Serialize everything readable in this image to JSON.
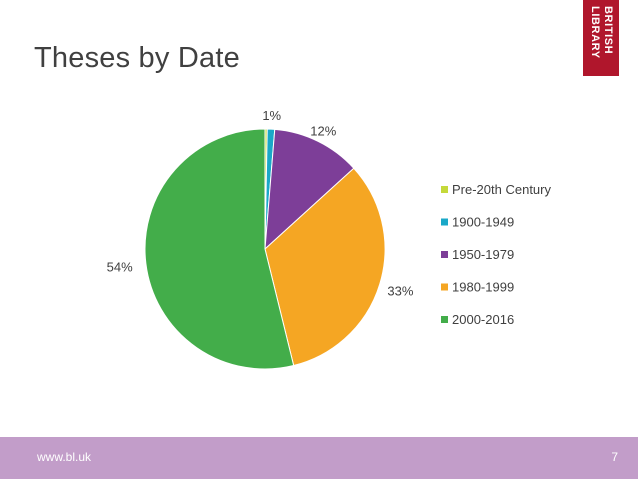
{
  "slide": {
    "title": "Theses by Date"
  },
  "logo": {
    "line1": "BRITISH",
    "line2": "LIBRARY",
    "color": "#b0162c"
  },
  "footer": {
    "url": "www.bl.uk",
    "page": "7",
    "color": "#c29dc9"
  },
  "chart_data": {
    "type": "pie",
    "title": "",
    "categories": [
      "Pre-20th Century",
      "1900-1949",
      "1950-1979",
      "1980-1999",
      "2000-2016"
    ],
    "values": [
      0.3,
      1,
      12,
      33,
      54
    ],
    "labels": [
      "",
      "1%",
      "12%",
      "33%",
      "54%"
    ],
    "colors": [
      "#c5d93a",
      "#1aa8c8",
      "#7d3e98",
      "#f5a623",
      "#43ad4a"
    ],
    "legend": "right",
    "start_angle_deg": 0,
    "direction": "clockwise"
  }
}
